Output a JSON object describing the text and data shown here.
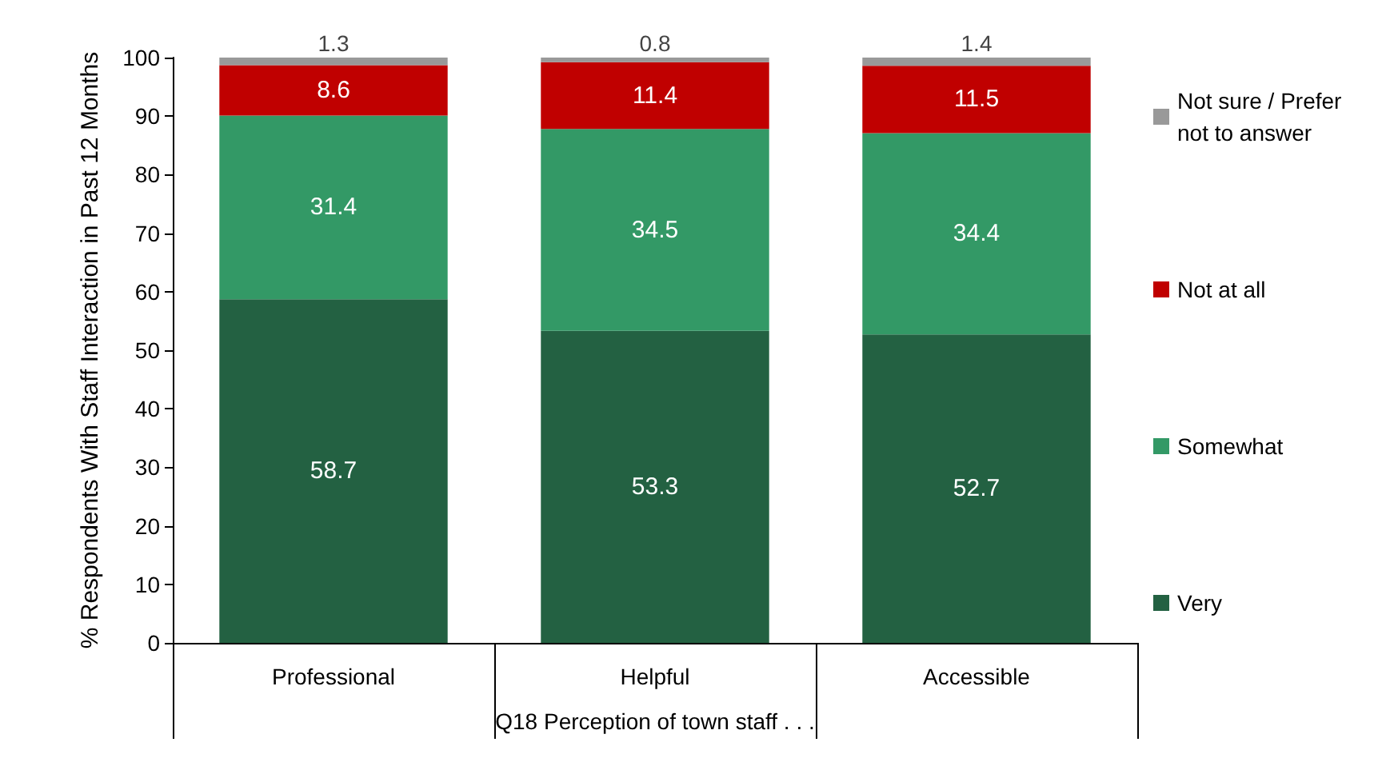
{
  "chart_data": {
    "type": "bar",
    "stacked": true,
    "ylabel": "% Respondents With Staff Interaction in Past 12 Months",
    "xlabel": "Q18 Perception of town staff . . .",
    "categories": [
      "Professional",
      "Helpful",
      "Accessible"
    ],
    "series": [
      {
        "name": "Very",
        "color": "#236142",
        "values": [
          58.7,
          53.3,
          52.7
        ]
      },
      {
        "name": "Somewhat",
        "color": "#339966",
        "values": [
          31.4,
          34.5,
          34.4
        ]
      },
      {
        "name": "Not at all",
        "color": "#c00000",
        "values": [
          8.6,
          11.4,
          11.5
        ]
      },
      {
        "name": "Not sure / Prefer not to answer",
        "color": "#999999",
        "values": [
          1.3,
          0.8,
          1.4
        ]
      }
    ],
    "ylim": [
      0,
      100
    ],
    "yticks": [
      0,
      10,
      20,
      30,
      40,
      50,
      60,
      70,
      80,
      90,
      100
    ],
    "grid": false,
    "legend": "right",
    "data_labels": true
  }
}
